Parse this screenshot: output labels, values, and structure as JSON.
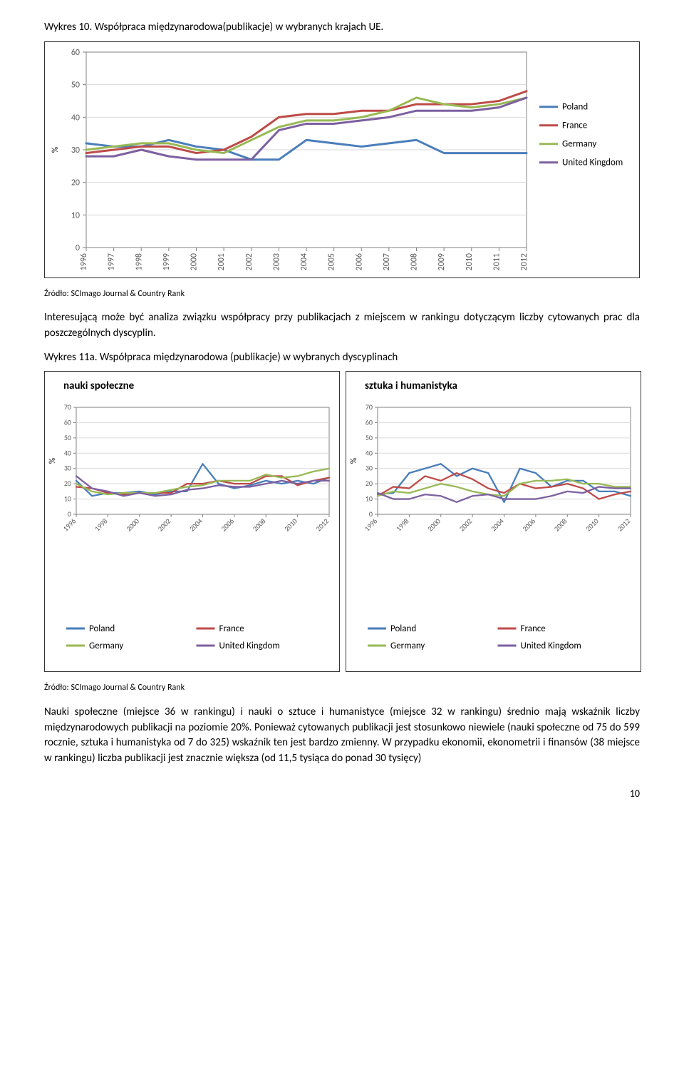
{
  "caption1": "Wykres 10. Współpraca międzynarodowa(publikacje) w wybranych krajach UE.",
  "source": "Źródło: SCImago Journal & Country Rank",
  "para1": "Interesującą może być analiza związku współpracy przy publikacjach z miejscem w rankingu dotyczącym liczby cytowanych prac dla poszczególnych dyscyplin.",
  "caption2": "Wykres 11a. Współpraca międzynarodowa (publikacje) w wybranych dyscyplinach",
  "para2": "Nauki społeczne (miejsce 36 w rankingu)  i nauki o sztuce i humanistyce (miejsce 32 w rankingu) średnio mają wskaźnik liczby międzynarodowych publikacji na poziomie 20%. Ponieważ cytowanych publikacji jest stosunkowo niewiele (nauki społeczne od 75 do 599 rocznie, sztuka i humanistyka od 7 do 325) wskaźnik ten jest bardzo zmienny. W przypadku ekonomii, ekonometrii i finansów (38 miejsce w rankingu) liczba publikacji jest znacznie większa (od 11,5 tysiąca do ponad 30 tysięcy)",
  "pagenum": "10",
  "chart1": {
    "type": "line",
    "ylabel": "%",
    "ylim": [
      0,
      60
    ],
    "ytick_step": 10,
    "yticks": [
      0,
      10,
      20,
      30,
      40,
      50,
      60
    ],
    "years": [
      "1996",
      "1997",
      "1998",
      "1999",
      "2000",
      "2001",
      "2002",
      "2003",
      "2004",
      "2005",
      "2006",
      "2007",
      "2008",
      "2009",
      "2010",
      "2011",
      "2012"
    ],
    "background_color": "#ffffff",
    "grid_color": "#d9d9d9",
    "axis_color": "#828282",
    "text_color": "#595959",
    "line_width": 3,
    "series": [
      {
        "name": "Poland",
        "color": "#4a7ebb",
        "values": [
          32,
          31,
          31,
          33,
          31,
          30,
          27,
          27,
          33,
          32,
          31,
          32,
          33,
          29,
          29,
          29,
          29
        ]
      },
      {
        "name": "France",
        "color": "#be4b48",
        "values": [
          29,
          30,
          31,
          31,
          29,
          30,
          34,
          40,
          41,
          41,
          42,
          42,
          44,
          44,
          44,
          45,
          48
        ]
      },
      {
        "name": "Germany",
        "color": "#98b954",
        "values": [
          30,
          31,
          32,
          32,
          30,
          29,
          33,
          37,
          39,
          39,
          40,
          42,
          46,
          44,
          43,
          44,
          46
        ]
      },
      {
        "name": "United Kingdom",
        "color": "#7d60a0",
        "values": [
          28,
          28,
          30,
          28,
          27,
          27,
          27,
          36,
          38,
          38,
          39,
          40,
          42,
          42,
          42,
          43,
          46
        ]
      }
    ],
    "legend": [
      "Poland",
      "France",
      "Germany",
      "United Kingdom"
    ]
  },
  "chart2a": {
    "type": "line",
    "title": "nauki społeczne",
    "ylabel": "%",
    "ylim": [
      0,
      70
    ],
    "ytick_step": 10,
    "yticks": [
      0,
      10,
      20,
      30,
      40,
      50,
      60,
      70
    ],
    "years": [
      "1996",
      "1998",
      "2000",
      "2002",
      "2004",
      "2006",
      "2008",
      "2010",
      "2012"
    ],
    "all_idx": [
      0,
      1,
      2,
      3,
      4,
      5,
      6,
      7,
      8,
      9,
      10,
      11,
      12,
      13,
      14,
      15,
      16
    ],
    "background_color": "#ffffff",
    "grid_color": "#d9d9d9",
    "axis_color": "#828282",
    "text_color": "#595959",
    "line_width": 2.3,
    "series": [
      {
        "name": "Poland",
        "color": "#4a7ebb",
        "values": [
          22,
          12,
          14,
          14,
          15,
          13,
          15,
          15,
          33,
          20,
          17,
          19,
          22,
          20,
          22,
          20,
          24
        ]
      },
      {
        "name": "France",
        "color": "#be4b48",
        "values": [
          18,
          17,
          14,
          13,
          14,
          14,
          14,
          20,
          20,
          22,
          20,
          20,
          25,
          25,
          19,
          22,
          24
        ]
      },
      {
        "name": "Germany",
        "color": "#98b954",
        "values": [
          20,
          15,
          13,
          14,
          14,
          14,
          16,
          18,
          19,
          22,
          22,
          22,
          26,
          24,
          25,
          28,
          30
        ]
      },
      {
        "name": "United Kingdom",
        "color": "#7d60a0",
        "values": [
          25,
          17,
          15,
          12,
          14,
          12,
          13,
          16,
          17,
          19,
          18,
          18,
          20,
          22,
          20,
          22,
          22
        ]
      }
    ]
  },
  "chart2b": {
    "type": "line",
    "title": "sztuka i humanistyka",
    "ylabel": "%",
    "ylim": [
      0,
      70
    ],
    "ytick_step": 10,
    "yticks": [
      0,
      10,
      20,
      30,
      40,
      50,
      60,
      70
    ],
    "years": [
      "1996",
      "1998",
      "2000",
      "2002",
      "2004",
      "2006",
      "2008",
      "2010",
      "2012"
    ],
    "background_color": "#ffffff",
    "grid_color": "#d9d9d9",
    "axis_color": "#828282",
    "text_color": "#595959",
    "line_width": 2.3,
    "series": [
      {
        "name": "Poland",
        "color": "#4a7ebb",
        "values": [
          13,
          14,
          27,
          30,
          33,
          25,
          30,
          27,
          8,
          30,
          27,
          18,
          22,
          22,
          15,
          15,
          12
        ]
      },
      {
        "name": "France",
        "color": "#be4b48",
        "values": [
          12,
          18,
          17,
          25,
          22,
          27,
          23,
          17,
          14,
          20,
          17,
          18,
          20,
          17,
          10,
          13,
          15
        ]
      },
      {
        "name": "Germany",
        "color": "#98b954",
        "values": [
          12,
          15,
          14,
          17,
          20,
          18,
          15,
          13,
          12,
          20,
          22,
          22,
          23,
          20,
          20,
          18,
          18
        ]
      },
      {
        "name": "United Kingdom",
        "color": "#7d60a0",
        "values": [
          14,
          10,
          10,
          13,
          12,
          8,
          12,
          13,
          10,
          10,
          10,
          12,
          15,
          14,
          18,
          17,
          17
        ]
      }
    ]
  },
  "legend_small": [
    "Poland",
    "France",
    "Germany",
    "United Kingdom"
  ],
  "colors": {
    "Poland": "#4a7ebb",
    "France": "#be4b48",
    "Germany": "#98b954",
    "United Kingdom": "#7d60a0"
  }
}
